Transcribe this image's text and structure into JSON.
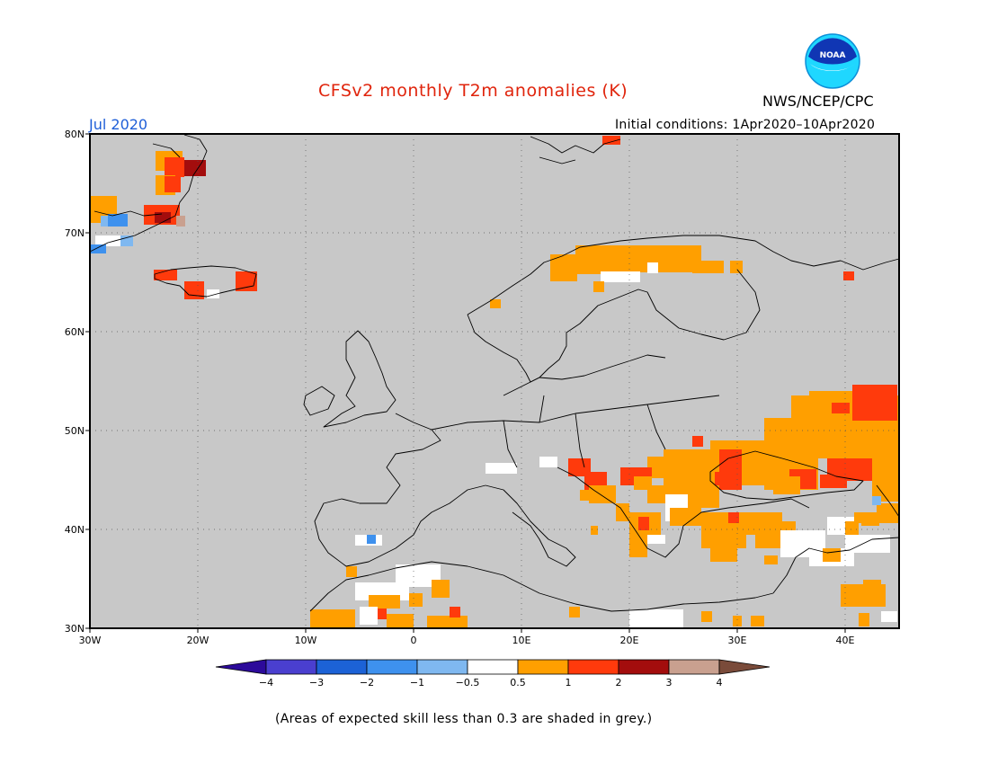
{
  "title": "CFSv2 monthly T2m anomalies (K)",
  "organization": "NWS/NCEP/CPC",
  "logo_text": "NOAA",
  "valid_month": "Jul 2020",
  "initial_conditions": "Initial conditions: 1Apr2020–10Apr2020",
  "footnote": "(Areas of expected skill less than 0.3 are shaded in grey.)",
  "colors": {
    "title": "#e0240c",
    "month": "#1f5fd8",
    "skill_grey": "#c8c8c8",
    "coast": "#000000"
  },
  "map": {
    "lat_labels": [
      "80N",
      "70N",
      "60N",
      "50N",
      "40N",
      "30N"
    ],
    "lon_labels": [
      "30W",
      "20W",
      "10W",
      "0",
      "10E",
      "20E",
      "30E",
      "40E"
    ],
    "lat_range": [
      30,
      80
    ],
    "lon_range": [
      -30,
      45
    ],
    "grid": true
  },
  "colorbar": {
    "labels": [
      "−4",
      "−3",
      "−2",
      "−1",
      "−0.5",
      "0.5",
      "1",
      "2",
      "3",
      "4"
    ],
    "colors": [
      "#2c0a9a",
      "#4a3fcf",
      "#1c62d6",
      "#3e91ee",
      "#7fb8f0",
      "#ffffff",
      "#ff9f00",
      "#ff3a0c",
      "#a30d0d",
      "#c9a08f",
      "#7a4b3a"
    ]
  }
}
